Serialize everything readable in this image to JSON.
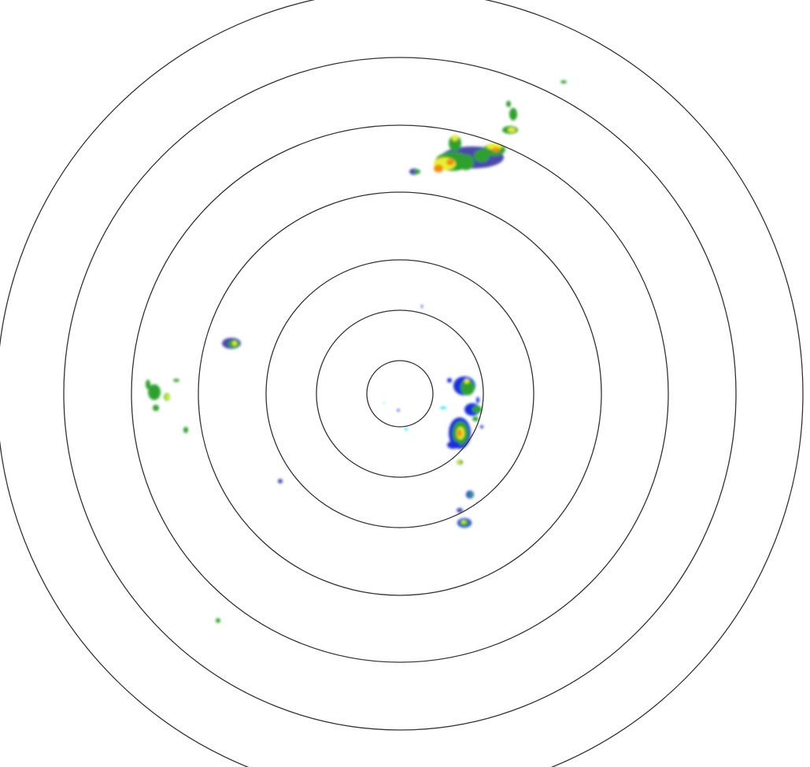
{
  "radar": {
    "ring_count": 7,
    "ring_color": "#333333",
    "background": "#ffffff",
    "reflectivity_colors": {
      "light": "#00e5ff",
      "weak": "#1a2fd6",
      "dark_weak": "#4a4aa8",
      "moderate": "#2ea02e",
      "moderate_bright": "#6fd12a",
      "strong": "#e8f030",
      "heavy": "#f08a10",
      "intense": "#e8401a"
    }
  }
}
